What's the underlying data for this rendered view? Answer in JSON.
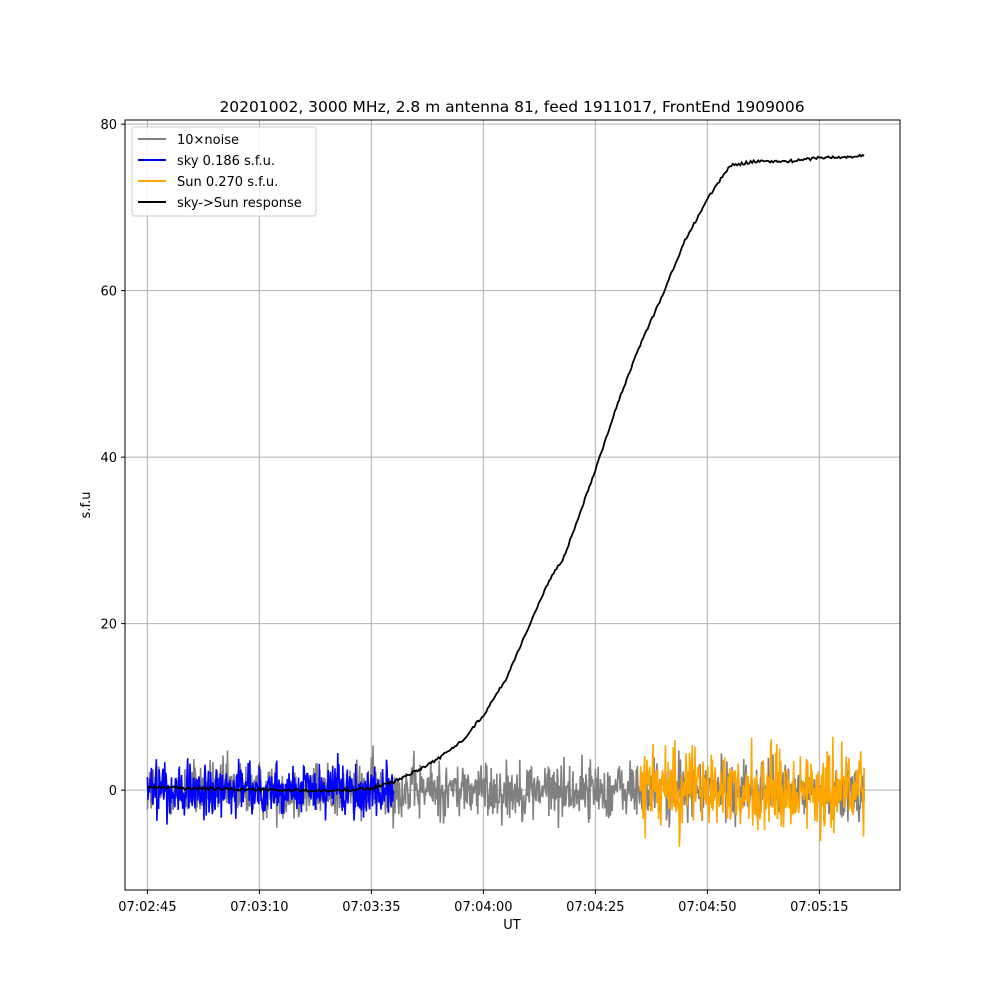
{
  "chart_data": {
    "type": "line",
    "title": "20201002, 3000 MHz, 2.8 m antenna 81, feed 1911017, FrontEnd 1909006",
    "xlabel": "UT",
    "ylabel": "s.f.u",
    "xlim": [
      "07:02:40",
      "07:05:33"
    ],
    "ylim": [
      -12,
      80.5
    ],
    "x_ticks": [
      "07:02:45",
      "07:03:10",
      "07:03:35",
      "07:04:00",
      "07:04:25",
      "07:04:50",
      "07:05:15"
    ],
    "y_ticks": [
      0,
      20,
      40,
      60,
      80
    ],
    "grid": true,
    "legend_position": "top-left",
    "series": [
      {
        "name": "10×noise",
        "color": "#808080",
        "x_range": [
          "07:02:45",
          "07:05:25"
        ],
        "mean": 0,
        "std": 2.0,
        "y_min": -6.5,
        "y_max": 8.0
      },
      {
        "name": "sky 0.186 s.f.u.",
        "color": "#0000ff",
        "x_range": [
          "07:02:45",
          "07:03:40"
        ],
        "mean": 0,
        "std": 1.86,
        "y_min": -6.0,
        "y_max": 5.6
      },
      {
        "name": "Sun 0.270 s.f.u.",
        "color": "#ffa500",
        "x_range": [
          "07:04:35",
          "07:05:25"
        ],
        "mean": 0,
        "std": 2.7,
        "y_min": -8.0,
        "y_max": 9.2
      },
      {
        "name": "sky->Sun response",
        "color": "#000000",
        "x": [
          "07:02:45",
          "07:02:55",
          "07:03:05",
          "07:03:15",
          "07:03:25",
          "07:03:35",
          "07:03:40",
          "07:03:45",
          "07:03:50",
          "07:03:55",
          "07:04:00",
          "07:04:05",
          "07:04:10",
          "07:04:15",
          "07:04:18",
          "07:04:20",
          "07:04:25",
          "07:04:30",
          "07:04:35",
          "07:04:40",
          "07:04:45",
          "07:04:50",
          "07:04:55",
          "07:05:00",
          "07:05:05",
          "07:05:10",
          "07:05:15",
          "07:05:20",
          "07:05:25"
        ],
        "y": [
          0.4,
          0.2,
          0.1,
          0.0,
          -0.1,
          0.2,
          1.0,
          2.3,
          3.8,
          5.8,
          9.0,
          13.3,
          19.5,
          25.5,
          28.0,
          31.0,
          38.5,
          46.5,
          53.5,
          59.5,
          66.0,
          71.0,
          75.0,
          75.5,
          75.5,
          75.6,
          76.0,
          76.0,
          76.2
        ]
      }
    ]
  }
}
